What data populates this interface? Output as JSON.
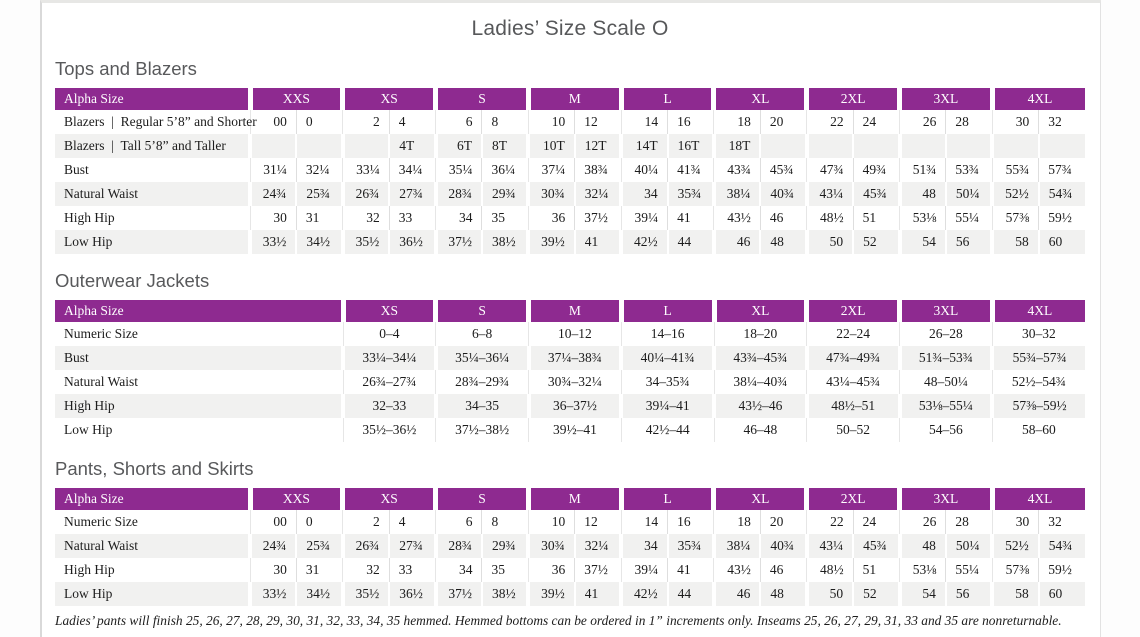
{
  "page_title": "Ladies’ Size Scale O",
  "footnote": "Ladies’ pants will finish 25, 26, 27, 28, 29, 30, 31, 32, 33, 34, 35 hemmed. Hemmed bottoms can be ordered in 1” increments only. Inseams 25, 26, 27, 29, 31, 33 and 35 are nonreturnable.",
  "colors": {
    "header_bg": "#8e2a90",
    "header_text": "#ffffff",
    "stripe": "#f1f1f0",
    "heading_text": "#58595b"
  },
  "sections": [
    {
      "heading": "Tops and Blazers",
      "type": "paired",
      "header": {
        "label": "Alpha Size",
        "groups": [
          "XXS",
          "XS",
          "S",
          "M",
          "L",
          "XL",
          "2XL",
          "3XL",
          "4XL"
        ]
      },
      "rows": [
        {
          "label": "Blazers  |  Regular 5’8” and Shorter",
          "values": [
            "00",
            "0",
            "2",
            "4",
            "6",
            "8",
            "10",
            "12",
            "14",
            "16",
            "18",
            "20",
            "22",
            "24",
            "26",
            "28",
            "30",
            "32"
          ]
        },
        {
          "label": "Blazers  |  Tall 5’8” and Taller",
          "values": [
            "",
            "",
            "",
            "4T",
            "6T",
            "8T",
            "10T",
            "12T",
            "14T",
            "16T",
            "18T",
            "",
            "",
            "",
            "",
            "",
            "",
            ""
          ]
        },
        {
          "label": "Bust",
          "values": [
            "31¼",
            "32¼",
            "33¼",
            "34¼",
            "35¼",
            "36¼",
            "37¼",
            "38¾",
            "40¼",
            "41¾",
            "43¾",
            "45¾",
            "47¾",
            "49¾",
            "51¾",
            "53¾",
            "55¾",
            "57¾"
          ]
        },
        {
          "label": "Natural Waist",
          "values": [
            "24¾",
            "25¾",
            "26¾",
            "27¾",
            "28¾",
            "29¾",
            "30¾",
            "32¼",
            "34",
            "35¾",
            "38¼",
            "40¾",
            "43¼",
            "45¾",
            "48",
            "50¼",
            "52½",
            "54¾"
          ]
        },
        {
          "label": "High Hip",
          "values": [
            "30",
            "31",
            "32",
            "33",
            "34",
            "35",
            "36",
            "37½",
            "39¼",
            "41",
            "43½",
            "46",
            "48½",
            "51",
            "53⅛",
            "55¼",
            "57⅜",
            "59½"
          ]
        },
        {
          "label": "Low Hip",
          "values": [
            "33½",
            "34½",
            "35½",
            "36½",
            "37½",
            "38½",
            "39½",
            "41",
            "42½",
            "44",
            "46",
            "48",
            "50",
            "52",
            "54",
            "56",
            "58",
            "60"
          ]
        }
      ]
    },
    {
      "heading": "Outerwear Jackets",
      "type": "single",
      "header": {
        "label": "Alpha Size",
        "groups": [
          "XS",
          "S",
          "M",
          "L",
          "XL",
          "2XL",
          "3XL",
          "4XL"
        ]
      },
      "rows": [
        {
          "label": "Numeric Size",
          "values": [
            "0–4",
            "6–8",
            "10–12",
            "14–16",
            "18–20",
            "22–24",
            "26–28",
            "30–32"
          ]
        },
        {
          "label": "Bust",
          "values": [
            "33¼–34¼",
            "35¼–36¼",
            "37¼–38¾",
            "40¼–41¾",
            "43¾–45¾",
            "47¾–49¾",
            "51¾–53¾",
            "55¾–57¾"
          ]
        },
        {
          "label": "Natural Waist",
          "values": [
            "26¾–27¾",
            "28¾–29¾",
            "30¾–32¼",
            "34–35¾",
            "38¼–40¾",
            "43¼–45¾",
            "48–50¼",
            "52½–54¾"
          ]
        },
        {
          "label": "High Hip",
          "values": [
            "32–33",
            "34–35",
            "36–37½",
            "39¼–41",
            "43½–46",
            "48½–51",
            "53⅛–55¼",
            "57⅜–59½"
          ]
        },
        {
          "label": "Low Hip",
          "values": [
            "35½–36½",
            "37½–38½",
            "39½–41",
            "42½–44",
            "46–48",
            "50–52",
            "54–56",
            "58–60"
          ]
        }
      ]
    },
    {
      "heading": "Pants, Shorts and Skirts",
      "type": "paired",
      "header": {
        "label": "Alpha Size",
        "groups": [
          "XXS",
          "XS",
          "S",
          "M",
          "L",
          "XL",
          "2XL",
          "3XL",
          "4XL"
        ]
      },
      "rows": [
        {
          "label": "Numeric Size",
          "values": [
            "00",
            "0",
            "2",
            "4",
            "6",
            "8",
            "10",
            "12",
            "14",
            "16",
            "18",
            "20",
            "22",
            "24",
            "26",
            "28",
            "30",
            "32"
          ]
        },
        {
          "label": "Natural Waist",
          "values": [
            "24¾",
            "25¾",
            "26¾",
            "27¾",
            "28¾",
            "29¾",
            "30¾",
            "32¼",
            "34",
            "35¾",
            "38¼",
            "40¾",
            "43¼",
            "45¾",
            "48",
            "50¼",
            "52½",
            "54¾"
          ]
        },
        {
          "label": "High Hip",
          "values": [
            "30",
            "31",
            "32",
            "33",
            "34",
            "35",
            "36",
            "37½",
            "39¼",
            "41",
            "43½",
            "46",
            "48½",
            "51",
            "53⅛",
            "55¼",
            "57⅜",
            "59½"
          ]
        },
        {
          "label": "Low Hip",
          "values": [
            "33½",
            "34½",
            "35½",
            "36½",
            "37½",
            "38½",
            "39½",
            "41",
            "42½",
            "44",
            "46",
            "48",
            "50",
            "52",
            "54",
            "56",
            "58",
            "60"
          ]
        }
      ]
    }
  ]
}
